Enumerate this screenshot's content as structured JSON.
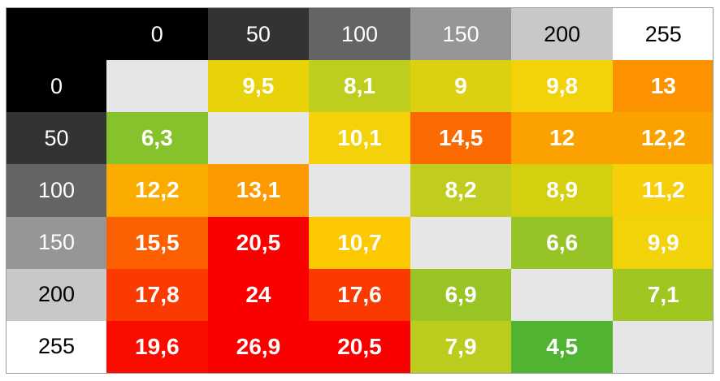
{
  "chart_data": {
    "type": "heatmap",
    "title": "",
    "xlabel": "",
    "ylabel": "",
    "x_categories": [
      "0",
      "50",
      "100",
      "150",
      "200",
      "255"
    ],
    "y_categories": [
      "0",
      "50",
      "100",
      "150",
      "200",
      "255"
    ],
    "header_colors": [
      "#000000",
      "#333333",
      "#646464",
      "#969696",
      "#c8c8c8",
      "#ffffff"
    ],
    "header_text_colors": [
      "#ffffff",
      "#ffffff",
      "#ffffff",
      "#ffffff",
      "#000000",
      "#000000"
    ],
    "values": [
      [
        "",
        "9,5",
        "8,1",
        "9",
        "9,8",
        "13"
      ],
      [
        "6,3",
        "",
        "10,1",
        "14,5",
        "12",
        "12,2"
      ],
      [
        "12,2",
        "13,1",
        "",
        "8,2",
        "8,9",
        "11,2"
      ],
      [
        "15,5",
        "20,5",
        "10,7",
        "",
        "6,6",
        "9,9"
      ],
      [
        "17,8",
        "24",
        "17,6",
        "6,9",
        "",
        "7,1"
      ],
      [
        "19,6",
        "26,9",
        "20,5",
        "7,9",
        "4,5",
        ""
      ]
    ],
    "cell_colors": [
      [
        "#e6e6e6",
        "#e8d20a",
        "#bfce1e",
        "#dcd010",
        "#f2d30a",
        "#fc9200"
      ],
      [
        "#86c22c",
        "#e6e6e6",
        "#f5d10a",
        "#fa6a00",
        "#fca200",
        "#fca200"
      ],
      [
        "#fcac00",
        "#fc9a00",
        "#e6e6e6",
        "#c0cd1e",
        "#d4d010",
        "#f6cf08"
      ],
      [
        "#fc6000",
        "#fa0000",
        "#fcc800",
        "#e6e6e6",
        "#96c426",
        "#f2d30a"
      ],
      [
        "#fa3a00",
        "#fa0000",
        "#fa3a00",
        "#98c426",
        "#e6e6e6",
        "#a0c622"
      ],
      [
        "#fa0c00",
        "#fa0000",
        "#fa0000",
        "#bccc1e",
        "#50b432",
        "#e6e6e6"
      ]
    ],
    "corner_color": "#000000"
  }
}
